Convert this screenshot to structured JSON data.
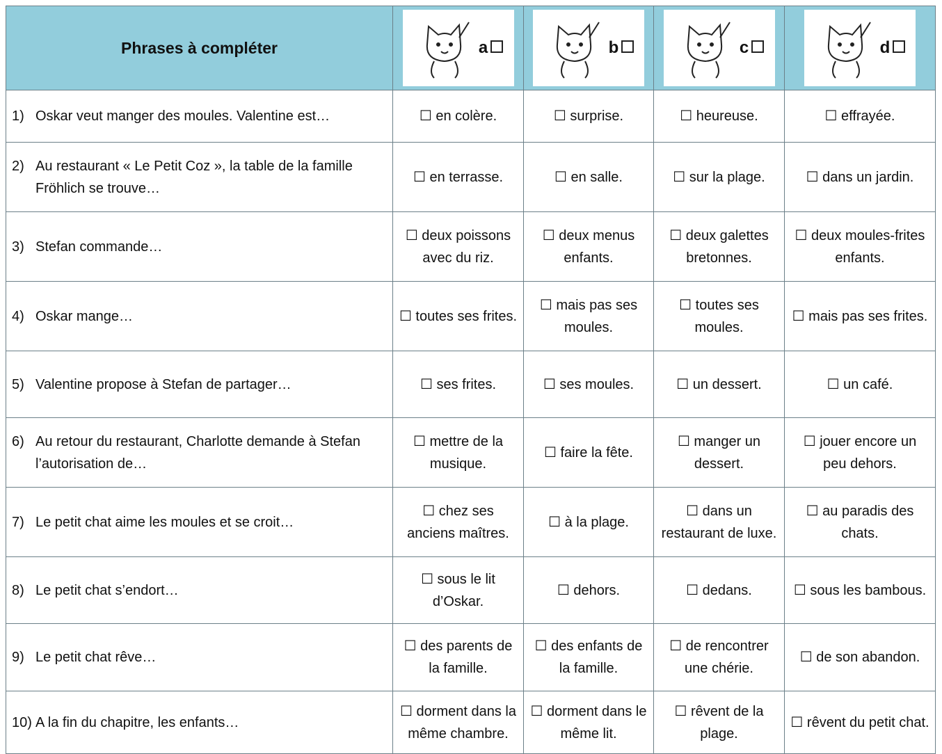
{
  "header": {
    "title": "Phrases à compléter",
    "options": [
      "a",
      "b",
      "c",
      "d"
    ]
  },
  "rows": [
    {
      "number": "1)",
      "question": "Oskar veut manger des moules. Valentine est…",
      "options": [
        "☐ en colère.",
        "☐  surprise.",
        "☐ heureuse.",
        "☐ effrayée."
      ]
    },
    {
      "number": "2)",
      "question": "Au restaurant « Le Petit Coz », la table de la famille Fröhlich se trouve…",
      "options": [
        "☐ en terrasse.",
        "☐ en salle.",
        "☐ sur la plage.",
        "☐ dans un jardin."
      ]
    },
    {
      "number": "3)",
      "question": "Stefan commande…",
      "options": [
        "☐ deux poissons avec du riz.",
        "☐ deux menus enfants.",
        "☐ deux galettes bretonnes.",
        "☐ deux moules-frites enfants."
      ]
    },
    {
      "number": "4)",
      "question": "Oskar mange…",
      "options": [
        "☐ toutes ses frites.",
        "☐ mais pas ses moules.",
        "☐ toutes ses moules.",
        "☐ mais pas ses frites."
      ]
    },
    {
      "number": "5)",
      "question": "Valentine propose à Stefan de partager…",
      "options": [
        "☐ ses frites.",
        "☐ ses moules.",
        "☐ un dessert.",
        "☐ un café."
      ]
    },
    {
      "number": "6)",
      "question": "Au retour du restaurant, Charlotte demande à Stefan l’autorisation de…",
      "options": [
        "☐ mettre de la musique.",
        "☐ faire la fête.",
        "☐ manger un dessert.",
        "☐ jouer encore un peu dehors."
      ]
    },
    {
      "number": "7)",
      "question": "Le petit chat aime les moules et se croit…",
      "options": [
        "☐ chez ses anciens maîtres.",
        "☐ à la plage.",
        "☐ dans un restaurant de luxe.",
        "☐ au paradis des chats."
      ]
    },
    {
      "number": "8)",
      "question": "Le petit chat s’endort…",
      "options": [
        "☐ sous le lit d’Oskar.",
        "☐ dehors.",
        "☐ dedans.",
        "☐ sous les bambous."
      ]
    },
    {
      "number": "9)",
      "question": "Le petit chat rêve…",
      "options": [
        "☐ des parents de la famille.",
        "☐ des enfants de la famille.",
        "☐ de rencontrer une chérie.",
        "☐ de son abandon."
      ]
    },
    {
      "number": "10)",
      "question": "A la fin du chapitre, les enfants…",
      "options": [
        "☐ dorment dans la même chambre.",
        "☐ dorment dans le même lit.",
        "☐ rêvent de la plage.",
        "☐ rêvent du petit chat."
      ]
    }
  ]
}
